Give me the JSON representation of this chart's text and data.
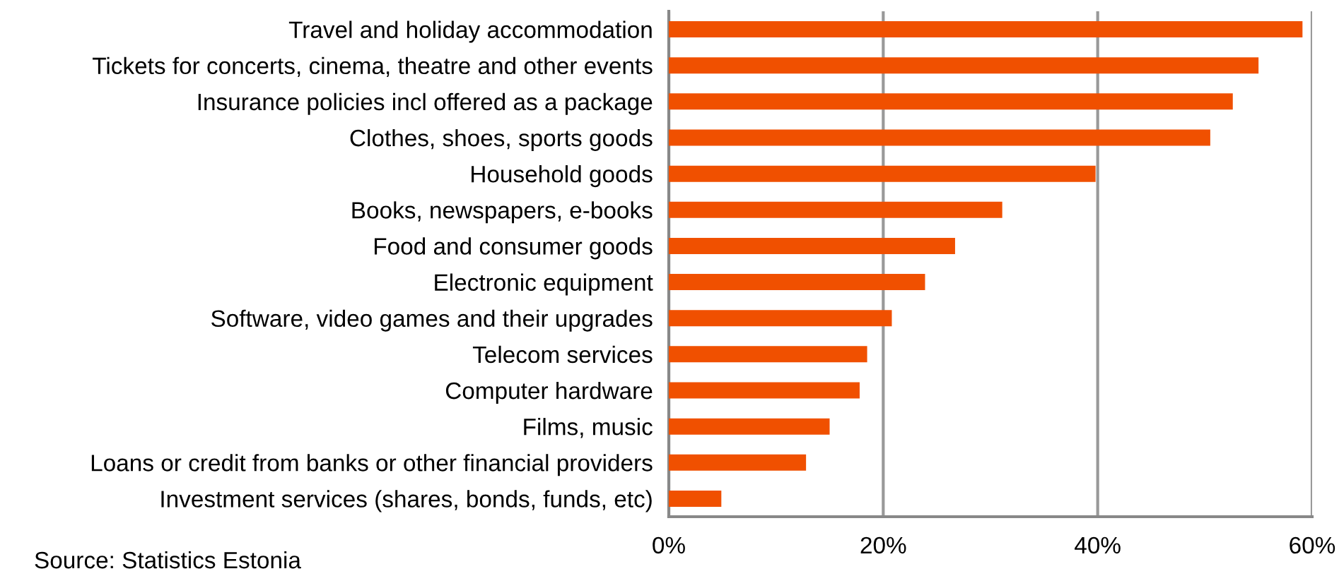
{
  "chart_data": {
    "type": "bar",
    "orientation": "horizontal",
    "categories": [
      "Travel and holiday accommodation",
      "Tickets for concerts, cinema, theatre and other events",
      "Insurance policies incl offered as a package",
      "Clothes, shoes, sports goods",
      "Household goods",
      "Books, newspapers, e-books",
      "Food and consumer goods",
      "Electronic equipment",
      "Software, video games and their upgrades",
      "Telecom services",
      "Computer hardware",
      "Films, music",
      "Loans or credit from banks or other financial providers",
      "Investment services (shares, bonds, funds, etc)"
    ],
    "values": [
      59.1,
      55.0,
      52.6,
      50.5,
      39.8,
      31.1,
      26.7,
      23.9,
      20.8,
      18.5,
      17.8,
      15.0,
      12.8,
      4.9
    ],
    "color": "#f05000",
    "xlim": [
      0,
      60
    ],
    "xticks": [
      {
        "value": 0,
        "label": "0%"
      },
      {
        "value": 20,
        "label": "20%"
      },
      {
        "value": 40,
        "label": "40%"
      },
      {
        "value": 60,
        "label": "60%"
      }
    ],
    "grid": "x",
    "annotations": [
      "Source: Statistics Estonia"
    ]
  }
}
